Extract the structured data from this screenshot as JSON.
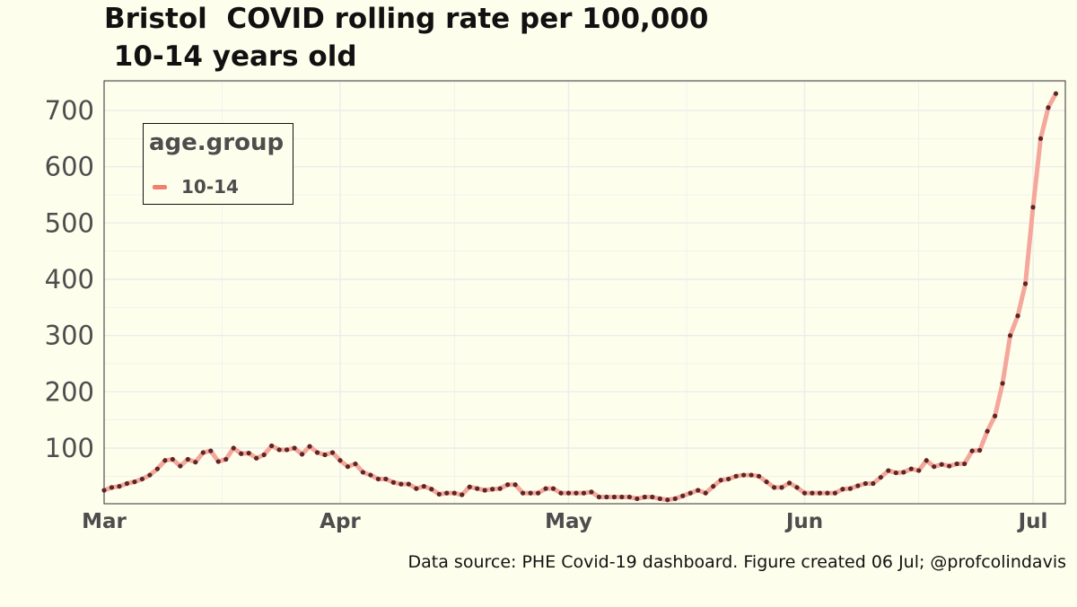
{
  "title": "Bristol  COVID rolling rate per 100,000\n 10-14 years old",
  "caption": "Data source: PHE Covid-19 dashboard. Figure created 06 Jul; @profcolindavis",
  "colors": {
    "background": "#fefeed",
    "line": "#f4a79a",
    "point": "#5a2626",
    "legend_key": "#f08074",
    "grid": "#ececec"
  },
  "legend": {
    "title": "age.group",
    "entries": [
      {
        "label": "10-14"
      }
    ]
  },
  "chart_data": {
    "type": "line",
    "title": "Bristol  COVID rolling rate per 100,000\n 10-14 years old",
    "xlabel": "",
    "ylabel": "",
    "x_ticks": [
      "Mar",
      "Apr",
      "May",
      "Jun",
      "Jul"
    ],
    "x_tick_days": [
      0,
      31,
      61,
      92,
      122
    ],
    "y_ticks": [
      100,
      200,
      300,
      400,
      500,
      600,
      700
    ],
    "xlim_days": [
      0,
      125
    ],
    "ylim": [
      0,
      750
    ],
    "grid": true,
    "legend_position": "top-left",
    "series": [
      {
        "name": "10-14",
        "x_start": "2021-03-01",
        "values": [
          25,
          30,
          32,
          37,
          40,
          45,
          52,
          63,
          78,
          80,
          68,
          80,
          75,
          92,
          95,
          76,
          80,
          100,
          90,
          91,
          82,
          88,
          104,
          97,
          97,
          100,
          89,
          103,
          92,
          88,
          92,
          78,
          67,
          72,
          57,
          52,
          45,
          45,
          39,
          36,
          36,
          28,
          32,
          27,
          18,
          20,
          20,
          17,
          31,
          28,
          25,
          27,
          28,
          35,
          35,
          20,
          20,
          20,
          28,
          28,
          20,
          20,
          20,
          20,
          22,
          13,
          13,
          13,
          13,
          13,
          10,
          13,
          13,
          10,
          8,
          10,
          15,
          20,
          25,
          20,
          32,
          43,
          45,
          50,
          52,
          52,
          50,
          40,
          30,
          30,
          38,
          30,
          20,
          20,
          20,
          20,
          20,
          27,
          28,
          33,
          37,
          37,
          48,
          60,
          56,
          57,
          63,
          60,
          78,
          67,
          71,
          68,
          72,
          72,
          95,
          96,
          130,
          157,
          215,
          300,
          335,
          392,
          528,
          650,
          705,
          730
        ]
      }
    ]
  }
}
